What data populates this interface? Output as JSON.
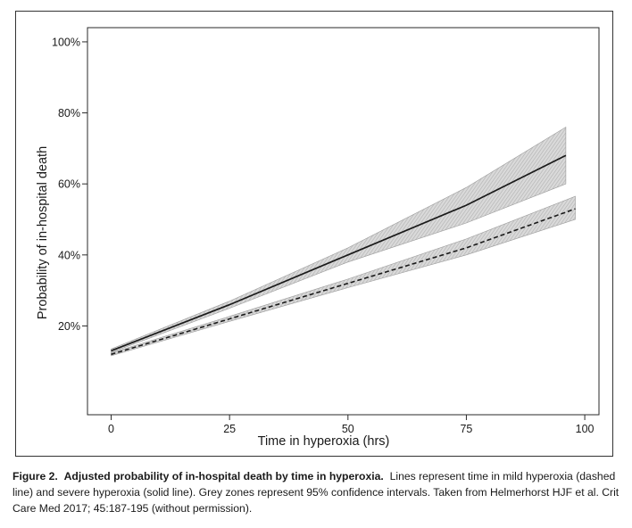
{
  "chart_data": {
    "type": "line",
    "xlabel": "Time in hyperoxia (hrs)",
    "ylabel": "Probability of in-hospital death",
    "xlim": [
      -5,
      103
    ],
    "ylim": [
      -5,
      104
    ],
    "x_ticks": [
      0,
      25,
      50,
      75,
      100
    ],
    "x_tick_labels": [
      "0",
      "25",
      "50",
      "75",
      "100"
    ],
    "y_ticks": [
      20,
      40,
      60,
      80,
      100
    ],
    "y_tick_labels": [
      "20%",
      "40%",
      "60%",
      "80%",
      "100%"
    ],
    "grid": false,
    "legend": "none",
    "series": [
      {
        "line_style": "solid",
        "x": [
          0,
          25,
          50,
          75,
          96
        ],
        "y": [
          13,
          26,
          40,
          54,
          68
        ],
        "ci_lower": [
          12.5,
          25,
          38,
          49,
          60
        ],
        "ci_upper": [
          13.5,
          27,
          42,
          59,
          76
        ]
      },
      {
        "line_style": "dashed",
        "x": [
          0,
          25,
          50,
          75,
          98
        ],
        "y": [
          12,
          22,
          32,
          42,
          53
        ],
        "ci_lower": [
          11.6,
          21.3,
          30.8,
          40,
          50
        ],
        "ci_upper": [
          12.4,
          22.7,
          33.2,
          44.5,
          56.5
        ]
      }
    ],
    "colors": {
      "line": "#1a1a1a",
      "ci_band": "#b5b5b5"
    }
  },
  "caption": {
    "label": "Figure 2.",
    "title": "Adjusted probability of in-hospital death by time in hyperoxia.",
    "body": "Lines represent time in mild hyperoxia (dashed line) and severe hyperoxia (solid line).  Grey zones represent 95% confidence intervals. Taken from Helmerhorst HJF et al.  Crit Care Med 2017; 45:187-195 (without permission)."
  }
}
